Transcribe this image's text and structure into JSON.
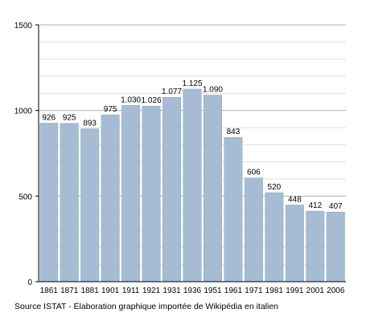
{
  "chart_data": {
    "type": "bar",
    "categories": [
      "1861",
      "1871",
      "1881",
      "1901",
      "1911",
      "1921",
      "1931",
      "1936",
      "1951",
      "1961",
      "1971",
      "1981",
      "1991",
      "2001",
      "2006"
    ],
    "values": [
      926,
      925,
      893,
      975,
      1030,
      1026,
      1077,
      1125,
      1090,
      843,
      606,
      520,
      448,
      412,
      407
    ],
    "value_labels": [
      "926",
      "925",
      "893",
      "975",
      "1.030",
      "1.026",
      "1.077",
      "1.125",
      "1.090",
      "843",
      "606",
      "520",
      "448",
      "412",
      "407"
    ],
    "ylim": [
      0,
      1500
    ],
    "y_ticks": [
      0,
      500,
      1000,
      1500
    ],
    "y_tick_labels": [
      "0",
      "500",
      "1000",
      "1500"
    ],
    "grid": true,
    "bar_color": "#a5bcd4",
    "bar_edge_color": "#8fa9c5",
    "title": "",
    "xlabel": "",
    "ylabel": ""
  },
  "source_text": "Source ISTAT - Élaboration graphique importée de Wikipédia en italien"
}
